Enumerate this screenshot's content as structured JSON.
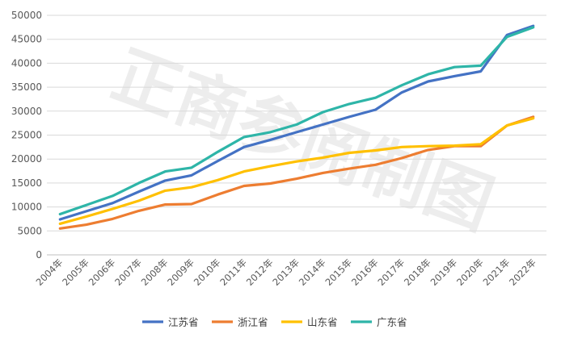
{
  "watermark": "正商参阅制图",
  "chart_data": {
    "type": "line",
    "title": "",
    "xlabel": "",
    "ylabel": "",
    "ylim": [
      0,
      50000
    ],
    "yticks": [
      0,
      5000,
      10000,
      15000,
      20000,
      25000,
      30000,
      35000,
      40000,
      45000,
      50000
    ],
    "grid": true,
    "legend_position": "bottom",
    "categories": [
      "2004年",
      "2005年",
      "2006年",
      "2007年",
      "2008年",
      "2009年",
      "2010年",
      "2011年",
      "2012年",
      "2013年",
      "2014年",
      "2015年",
      "2016年",
      "2017年",
      "2018年",
      "2019年",
      "2020年",
      "2021年",
      "2022年"
    ],
    "series": [
      {
        "name": "江苏省",
        "color": "#4472C4",
        "values": [
          7400,
          9100,
          10800,
          13200,
          15500,
          16600,
          19600,
          22500,
          24000,
          25600,
          27200,
          28800,
          30300,
          33900,
          36200,
          37300,
          38300,
          45900,
          47800
        ]
      },
      {
        "name": "浙江省",
        "color": "#ED7D31",
        "values": [
          5500,
          6300,
          7500,
          9200,
          10500,
          10600,
          12600,
          14400,
          14900,
          15900,
          17100,
          18000,
          18800,
          20200,
          21900,
          22700,
          22700,
          27000,
          28800
        ]
      },
      {
        "name": "山东省",
        "color": "#FFC000",
        "values": [
          6500,
          8000,
          9600,
          11300,
          13400,
          14100,
          15600,
          17400,
          18500,
          19500,
          20300,
          21300,
          21800,
          22500,
          22700,
          22800,
          23100,
          27000,
          28500
        ]
      },
      {
        "name": "广东省",
        "color": "#2EB5A8",
        "values": [
          8500,
          10400,
          12300,
          15000,
          17400,
          18200,
          21500,
          24600,
          25600,
          27200,
          29800,
          31500,
          32800,
          35400,
          37700,
          39200,
          39500,
          45500,
          47500
        ]
      }
    ]
  }
}
